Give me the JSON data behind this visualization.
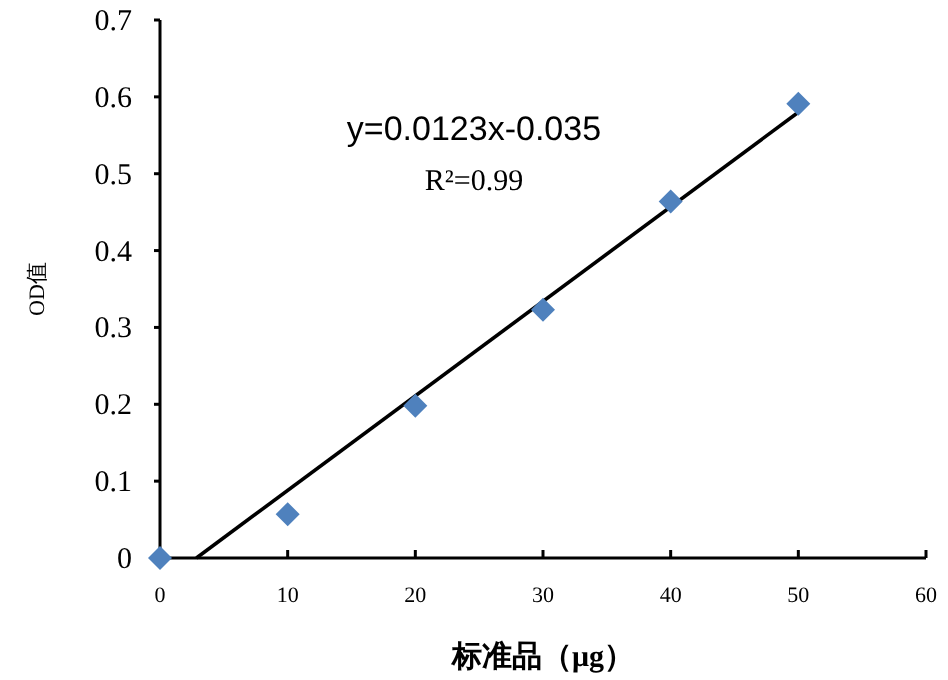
{
  "chart_data": {
    "type": "scatter",
    "xlabel": "标准品（μg）",
    "ylabel": "OD值",
    "annotations": [
      "y=0.0123x-0.035",
      "R²=0.99"
    ],
    "series": [
      {
        "color": "#4f81bd",
        "marker": "diamond",
        "x": [
          0,
          10,
          20,
          30,
          40,
          50
        ],
        "values": [
          0,
          0.057,
          0.198,
          0.323,
          0.464,
          0.591
        ]
      },
      {
        "type": "line",
        "color": "#000000",
        "marker": "none",
        "x": [
          2.85,
          50
        ],
        "values": [
          0,
          0.58
        ]
      }
    ],
    "xlim": [
      0,
      60
    ],
    "xticks": [
      0,
      10,
      20,
      30,
      40,
      50,
      60
    ],
    "ylim": [
      0,
      0.7
    ],
    "yticks": [
      0,
      0.1,
      0.2,
      0.3,
      0.4,
      0.5,
      0.6,
      0.7
    ],
    "grid": false
  }
}
